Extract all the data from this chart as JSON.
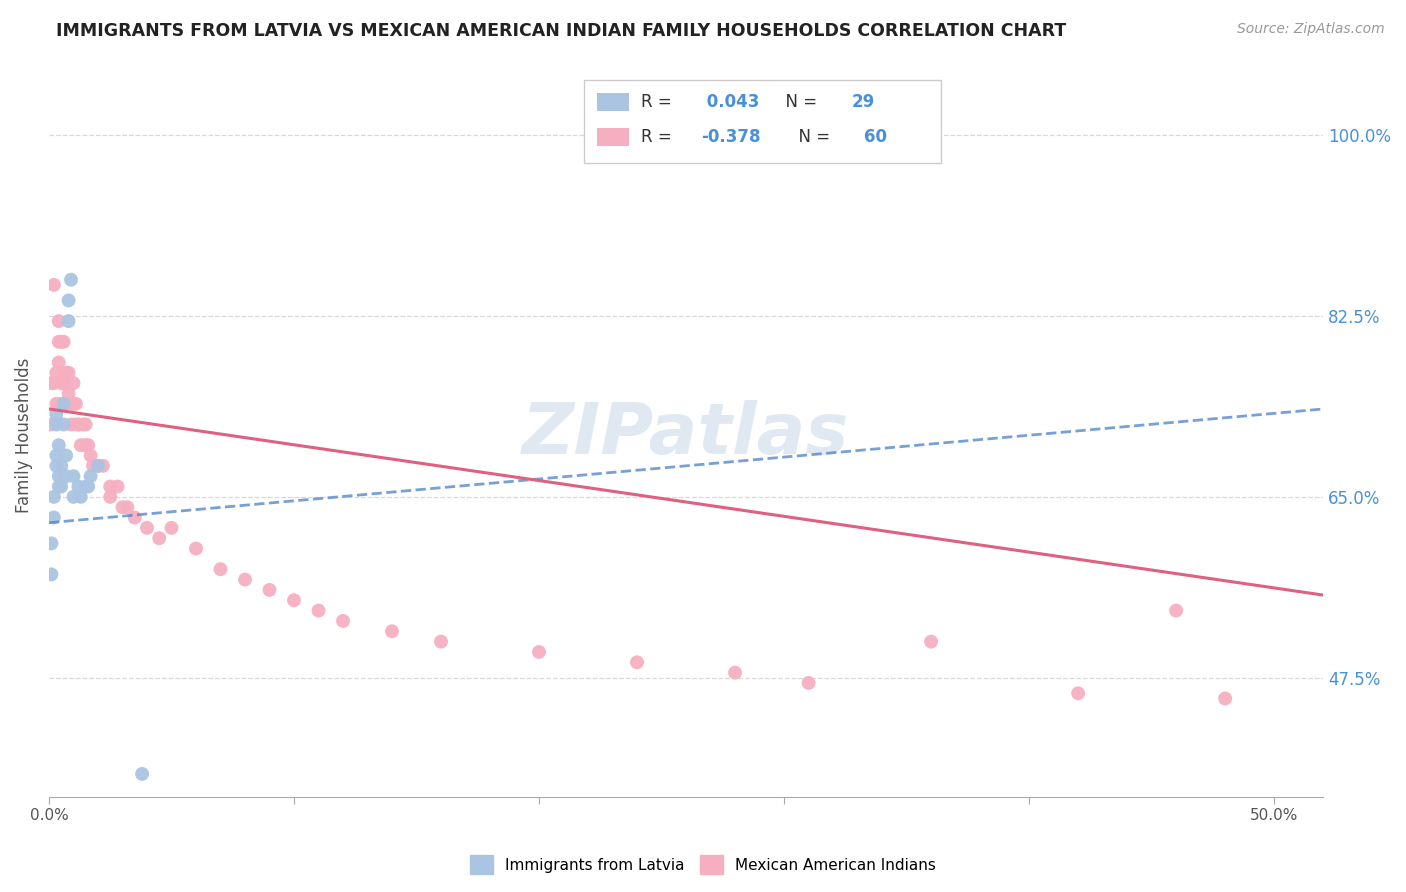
{
  "title": "IMMIGRANTS FROM LATVIA VS MEXICAN AMERICAN INDIAN FAMILY HOUSEHOLDS CORRELATION CHART",
  "source": "Source: ZipAtlas.com",
  "ylabel": "Family Households",
  "yticks": [
    "47.5%",
    "65.0%",
    "82.5%",
    "100.0%"
  ],
  "ytick_vals": [
    0.475,
    0.65,
    0.825,
    1.0
  ],
  "xlim": [
    0.0,
    0.52
  ],
  "ylim": [
    0.36,
    1.06
  ],
  "blue_color": "#aac4e2",
  "pink_color": "#f5afc0",
  "blue_line_color": "#5588cc",
  "pink_line_color": "#e06080",
  "R_blue": 0.043,
  "N_blue": 29,
  "R_pink": -0.378,
  "N_pink": 60,
  "watermark": "ZIPatlas",
  "blue_scatter_x": [
    0.001,
    0.001,
    0.002,
    0.002,
    0.003,
    0.003,
    0.003,
    0.003,
    0.004,
    0.004,
    0.004,
    0.005,
    0.005,
    0.006,
    0.006,
    0.007,
    0.007,
    0.008,
    0.008,
    0.009,
    0.01,
    0.01,
    0.012,
    0.013,
    0.015,
    0.016,
    0.017,
    0.02,
    0.038
  ],
  "blue_scatter_y": [
    0.605,
    0.575,
    0.63,
    0.65,
    0.68,
    0.69,
    0.72,
    0.73,
    0.66,
    0.67,
    0.7,
    0.66,
    0.68,
    0.72,
    0.74,
    0.67,
    0.69,
    0.82,
    0.84,
    0.86,
    0.65,
    0.67,
    0.66,
    0.65,
    0.66,
    0.66,
    0.67,
    0.68,
    0.382
  ],
  "pink_scatter_x": [
    0.001,
    0.001,
    0.002,
    0.003,
    0.003,
    0.004,
    0.004,
    0.005,
    0.005,
    0.005,
    0.006,
    0.006,
    0.007,
    0.007,
    0.008,
    0.008,
    0.009,
    0.009,
    0.01,
    0.01,
    0.011,
    0.011,
    0.012,
    0.013,
    0.014,
    0.015,
    0.015,
    0.016,
    0.017,
    0.018,
    0.02,
    0.022,
    0.025,
    0.028,
    0.03,
    0.032,
    0.035,
    0.04,
    0.045,
    0.05,
    0.06,
    0.07,
    0.08,
    0.09,
    0.1,
    0.11,
    0.12,
    0.14,
    0.16,
    0.2,
    0.24,
    0.28,
    0.31,
    0.36,
    0.42,
    0.46,
    0.48,
    0.002,
    0.004,
    0.025
  ],
  "pink_scatter_y": [
    0.72,
    0.76,
    0.76,
    0.74,
    0.77,
    0.78,
    0.8,
    0.74,
    0.76,
    0.8,
    0.76,
    0.8,
    0.74,
    0.77,
    0.75,
    0.77,
    0.72,
    0.74,
    0.74,
    0.76,
    0.72,
    0.74,
    0.72,
    0.7,
    0.72,
    0.72,
    0.7,
    0.7,
    0.69,
    0.68,
    0.68,
    0.68,
    0.66,
    0.66,
    0.64,
    0.64,
    0.63,
    0.62,
    0.61,
    0.62,
    0.6,
    0.58,
    0.57,
    0.56,
    0.55,
    0.54,
    0.53,
    0.52,
    0.51,
    0.5,
    0.49,
    0.48,
    0.47,
    0.51,
    0.46,
    0.54,
    0.455,
    0.855,
    0.82,
    0.65
  ],
  "blue_line_x": [
    0.0,
    0.52
  ],
  "blue_line_y": [
    0.625,
    0.735
  ],
  "pink_line_x": [
    0.0,
    0.52
  ],
  "pink_line_y": [
    0.735,
    0.555
  ],
  "grid_color": "#d8d8d8",
  "background_color": "#ffffff",
  "xtick_positions": [
    0.0,
    0.1,
    0.2,
    0.3,
    0.4,
    0.5
  ],
  "xtick_label_show": [
    "0.0%",
    "",
    "",
    "",
    "",
    "50.0%"
  ]
}
